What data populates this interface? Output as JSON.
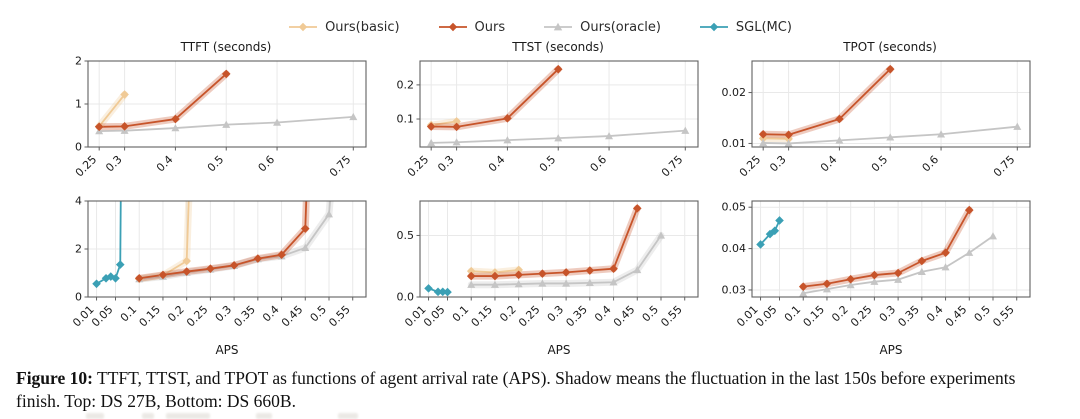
{
  "figure": {
    "caption_prefix": "Figure 10:",
    "caption_body": " TTFT, TTST, and TPOT as functions of agent arrival rate (APS). Shadow means the fluctuation in the last 150s before experiments finish. Top: DS 27B, Bottom: DS 660B."
  },
  "colors": {
    "axis_border": "#606060",
    "grid": "#e9e9e9",
    "tick_text": "#1a1a1a"
  },
  "legend": {
    "items": [
      {
        "label": "Ours(basic)",
        "color": "#f0ca96",
        "marker": "diamond"
      },
      {
        "label": "Ours",
        "color": "#c7542a",
        "marker": "diamond"
      },
      {
        "label": "Ours(oracle)",
        "color": "#c5c5c5",
        "marker": "triangle"
      },
      {
        "label": "SGL(MC)",
        "color": "#3ba0b5",
        "marker": "diamond"
      }
    ]
  },
  "chart_data": [
    {
      "type": "line",
      "row": "top",
      "title": "TTFT (seconds)",
      "xlabel": "",
      "xlim": [
        0.228,
        0.775
      ],
      "ylim": [
        0,
        2
      ],
      "xticks": [
        0.25,
        0.3,
        0.4,
        0.5,
        0.6,
        0.75
      ],
      "xtick_labels": [
        "0.25",
        "0.3",
        "0.4",
        "0.5",
        "0.6",
        "0.75"
      ],
      "yticks": [
        0,
        1,
        2
      ],
      "ytick_labels": [
        "0",
        "1",
        "2"
      ],
      "series": [
        {
          "name": "Ours(basic)",
          "shadow": true,
          "x": [
            0.25,
            0.3
          ],
          "y": [
            0.48,
            1.22
          ]
        },
        {
          "name": "Ours(oracle)",
          "shadow": false,
          "x": [
            0.25,
            0.3,
            0.4,
            0.5,
            0.6,
            0.75
          ],
          "y": [
            0.37,
            0.38,
            0.44,
            0.52,
            0.57,
            0.7
          ]
        },
        {
          "name": "Ours",
          "shadow": true,
          "x": [
            0.25,
            0.3,
            0.4,
            0.5
          ],
          "y": [
            0.47,
            0.48,
            0.65,
            1.7
          ]
        }
      ]
    },
    {
      "type": "line",
      "row": "top",
      "title": "TTST (seconds)",
      "xlabel": "",
      "xlim": [
        0.228,
        0.775
      ],
      "ylim": [
        0.018,
        0.27
      ],
      "xticks": [
        0.25,
        0.3,
        0.4,
        0.5,
        0.6,
        0.75
      ],
      "xtick_labels": [
        "0.25",
        "0.3",
        "0.4",
        "0.5",
        "0.6",
        "0.75"
      ],
      "yticks": [
        0.1,
        0.2
      ],
      "ytick_labels": [
        "0.1",
        "0.2"
      ],
      "series": [
        {
          "name": "Ours(basic)",
          "shadow": true,
          "x": [
            0.25,
            0.3
          ],
          "y": [
            0.082,
            0.093
          ]
        },
        {
          "name": "Ours(oracle)",
          "shadow": false,
          "x": [
            0.25,
            0.3,
            0.4,
            0.5,
            0.6,
            0.75
          ],
          "y": [
            0.03,
            0.032,
            0.038,
            0.044,
            0.05,
            0.066
          ]
        },
        {
          "name": "Ours",
          "shadow": true,
          "x": [
            0.25,
            0.3,
            0.4,
            0.5
          ],
          "y": [
            0.078,
            0.077,
            0.102,
            0.246
          ]
        }
      ]
    },
    {
      "type": "line",
      "row": "top",
      "title": "TPOT (seconds)",
      "xlabel": "",
      "xlim": [
        0.228,
        0.775
      ],
      "ylim": [
        0.0093,
        0.0262
      ],
      "xticks": [
        0.25,
        0.3,
        0.4,
        0.5,
        0.6,
        0.75
      ],
      "xtick_labels": [
        "0.25",
        "0.3",
        "0.4",
        "0.5",
        "0.6",
        "0.75"
      ],
      "yticks": [
        0.01,
        0.02
      ],
      "ytick_labels": [
        "0.01",
        "0.02"
      ],
      "series": [
        {
          "name": "Ours(basic)",
          "shadow": true,
          "x": [
            0.25,
            0.3
          ],
          "y": [
            0.011,
            0.0109
          ]
        },
        {
          "name": "Ours(oracle)",
          "shadow": false,
          "x": [
            0.25,
            0.3,
            0.4,
            0.5,
            0.6,
            0.75
          ],
          "y": [
            0.0101,
            0.01,
            0.0106,
            0.0112,
            0.0118,
            0.0133
          ]
        },
        {
          "name": "Ours",
          "shadow": true,
          "x": [
            0.25,
            0.3,
            0.4,
            0.5
          ],
          "y": [
            0.0118,
            0.0117,
            0.0148,
            0.0246
          ]
        }
      ]
    },
    {
      "type": "line",
      "row": "bottom",
      "title": "",
      "xlabel": "APS",
      "xlim": [
        -0.008,
        0.578
      ],
      "ylim": [
        0,
        4
      ],
      "xticks": [
        0.01,
        0.05,
        0.1,
        0.15,
        0.2,
        0.25,
        0.3,
        0.35,
        0.4,
        0.45,
        0.5,
        0.55
      ],
      "xtick_labels": [
        "0.01",
        "0.05",
        "0.1",
        "0.15",
        "0.2",
        "0.25",
        "0.3",
        "0.35",
        "0.4",
        "0.45",
        "0.5",
        "0.55"
      ],
      "yticks": [
        0,
        2,
        4
      ],
      "ytick_labels": [
        "0",
        "2",
        "4"
      ],
      "series": [
        {
          "name": "Ours(basic)",
          "shadow": true,
          "x": [
            0.1,
            0.15,
            0.2,
            0.213
          ],
          "y": [
            0.75,
            0.9,
            1.5,
            9
          ]
        },
        {
          "name": "Ours(oracle)",
          "shadow": true,
          "x": [
            0.1,
            0.15,
            0.2,
            0.25,
            0.3,
            0.35,
            0.4,
            0.45,
            0.5,
            0.523
          ],
          "y": [
            0.75,
            0.85,
            1.02,
            1.15,
            1.3,
            1.58,
            1.7,
            2.05,
            3.45,
            9
          ]
        },
        {
          "name": "Ours",
          "shadow": true,
          "x": [
            0.1,
            0.15,
            0.2,
            0.25,
            0.3,
            0.35,
            0.4,
            0.45,
            0.461
          ],
          "y": [
            0.78,
            0.92,
            1.06,
            1.18,
            1.32,
            1.6,
            1.76,
            2.85,
            9
          ]
        },
        {
          "name": "SGL(MC)",
          "shadow": false,
          "x": [
            0.01,
            0.03,
            0.04,
            0.05,
            0.06,
            0.063
          ],
          "y": [
            0.55,
            0.78,
            0.85,
            0.78,
            1.35,
            9
          ]
        }
      ]
    },
    {
      "type": "line",
      "row": "bottom",
      "title": "",
      "xlabel": "APS",
      "xlim": [
        -0.008,
        0.578
      ],
      "ylim": [
        0,
        0.78
      ],
      "xticks": [
        0.01,
        0.05,
        0.1,
        0.15,
        0.2,
        0.25,
        0.3,
        0.35,
        0.4,
        0.45,
        0.5,
        0.55
      ],
      "xtick_labels": [
        "0.01",
        "0.05",
        "0.1",
        "0.15",
        "0.2",
        "0.25",
        "0.3",
        "0.35",
        "0.4",
        "0.45",
        "0.5",
        "0.55"
      ],
      "yticks": [
        0.0,
        0.5
      ],
      "ytick_labels": [
        "0.0",
        "0.5"
      ],
      "series": [
        {
          "name": "Ours(basic)",
          "shadow": true,
          "x": [
            0.1,
            0.15,
            0.2
          ],
          "y": [
            0.21,
            0.2,
            0.22
          ]
        },
        {
          "name": "Ours(oracle)",
          "shadow": true,
          "x": [
            0.1,
            0.15,
            0.2,
            0.25,
            0.3,
            0.35,
            0.4,
            0.45,
            0.5
          ],
          "y": [
            0.1,
            0.1,
            0.105,
            0.11,
            0.11,
            0.115,
            0.12,
            0.22,
            0.5
          ]
        },
        {
          "name": "Ours",
          "shadow": true,
          "x": [
            0.1,
            0.15,
            0.2,
            0.25,
            0.3,
            0.35,
            0.4,
            0.45
          ],
          "y": [
            0.17,
            0.17,
            0.18,
            0.19,
            0.2,
            0.215,
            0.23,
            0.72
          ]
        },
        {
          "name": "SGL(MC)",
          "shadow": false,
          "x": [
            0.01,
            0.03,
            0.04,
            0.05
          ],
          "y": [
            0.07,
            0.042,
            0.042,
            0.04
          ]
        }
      ]
    },
    {
      "type": "line",
      "row": "bottom",
      "title": "",
      "xlabel": "APS",
      "xlim": [
        -0.008,
        0.578
      ],
      "ylim": [
        0.0283,
        0.0515
      ],
      "xticks": [
        0.01,
        0.05,
        0.1,
        0.15,
        0.2,
        0.25,
        0.3,
        0.35,
        0.4,
        0.45,
        0.5,
        0.55
      ],
      "xtick_labels": [
        "0.01",
        "0.05",
        "0.1",
        "0.15",
        "0.2",
        "0.25",
        "0.3",
        "0.35",
        "0.4",
        "0.45",
        "0.5",
        "0.55"
      ],
      "yticks": [
        0.03,
        0.04,
        0.05
      ],
      "ytick_labels": [
        "0.03",
        "0.04",
        "0.05"
      ],
      "series": [
        {
          "name": "Ours(oracle)",
          "shadow": false,
          "x": [
            0.1,
            0.15,
            0.2,
            0.25,
            0.3,
            0.35,
            0.4,
            0.45,
            0.5
          ],
          "y": [
            0.0292,
            0.0302,
            0.0312,
            0.032,
            0.0325,
            0.0344,
            0.0355,
            0.039,
            0.043
          ]
        },
        {
          "name": "Ours",
          "shadow": true,
          "x": [
            0.1,
            0.15,
            0.2,
            0.25,
            0.3,
            0.35,
            0.4,
            0.45
          ],
          "y": [
            0.0308,
            0.0315,
            0.0326,
            0.0336,
            0.0341,
            0.037,
            0.039,
            0.0493
          ]
        },
        {
          "name": "SGL(MC)",
          "shadow": false,
          "x": [
            0.01,
            0.03,
            0.04,
            0.05
          ],
          "y": [
            0.041,
            0.0435,
            0.0443,
            0.0468
          ]
        }
      ]
    }
  ]
}
